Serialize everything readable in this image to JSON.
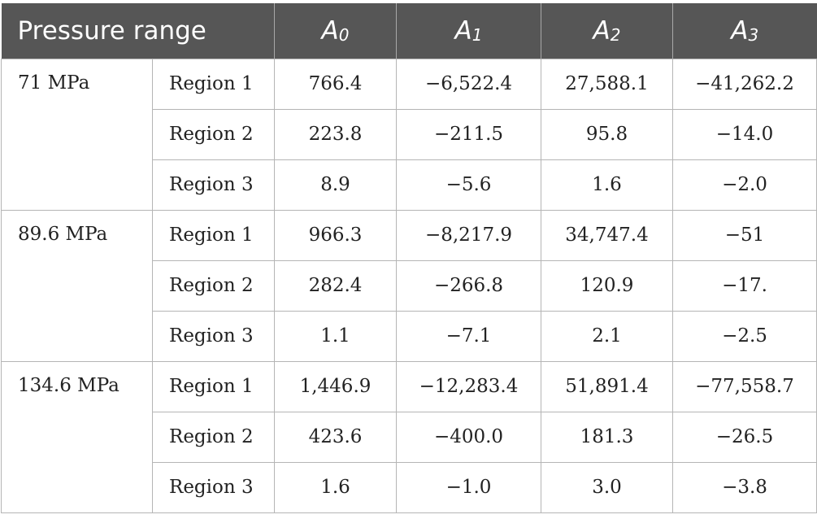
{
  "header": {
    "pressure_range": "Pressure range",
    "coefficients": [
      {
        "letter": "A",
        "sub": "0"
      },
      {
        "letter": "A",
        "sub": "1"
      },
      {
        "letter": "A",
        "sub": "2"
      },
      {
        "letter": "A",
        "sub": "3"
      }
    ]
  },
  "groups": [
    {
      "pressure": "71 MPa",
      "rows": [
        {
          "region": "Region 1",
          "values": [
            "766.4",
            "−6,522.4",
            "27,588.1",
            "−41,262.2"
          ]
        },
        {
          "region": "Region 2",
          "values": [
            "223.8",
            "−211.5",
            "95.8",
            "−14.0"
          ]
        },
        {
          "region": "Region 3",
          "values": [
            "8.9",
            "−5.6",
            "1.6",
            "−2.0"
          ]
        }
      ]
    },
    {
      "pressure": "89.6 MPa",
      "rows": [
        {
          "region": "Region 1",
          "values": [
            "966.3",
            "−8,217.9",
            "34,747.4",
            "−51"
          ]
        },
        {
          "region": "Region 2",
          "values": [
            "282.4",
            "−266.8",
            "120.9",
            "−17."
          ]
        },
        {
          "region": "Region 3",
          "values": [
            "1.1",
            "−7.1",
            "2.1",
            "−2.5"
          ]
        }
      ]
    },
    {
      "pressure": "134.6 MPa",
      "rows": [
        {
          "region": "Region 1",
          "values": [
            "1,446.9",
            "−12,283.4",
            "51,891.4",
            "−77,558.7"
          ]
        },
        {
          "region": "Region 2",
          "values": [
            "423.6",
            "−400.0",
            "181.3",
            "−26.5"
          ]
        },
        {
          "region": "Region 3",
          "values": [
            "1.6",
            "−1.0",
            "3.0",
            "−3.8"
          ]
        }
      ]
    }
  ]
}
